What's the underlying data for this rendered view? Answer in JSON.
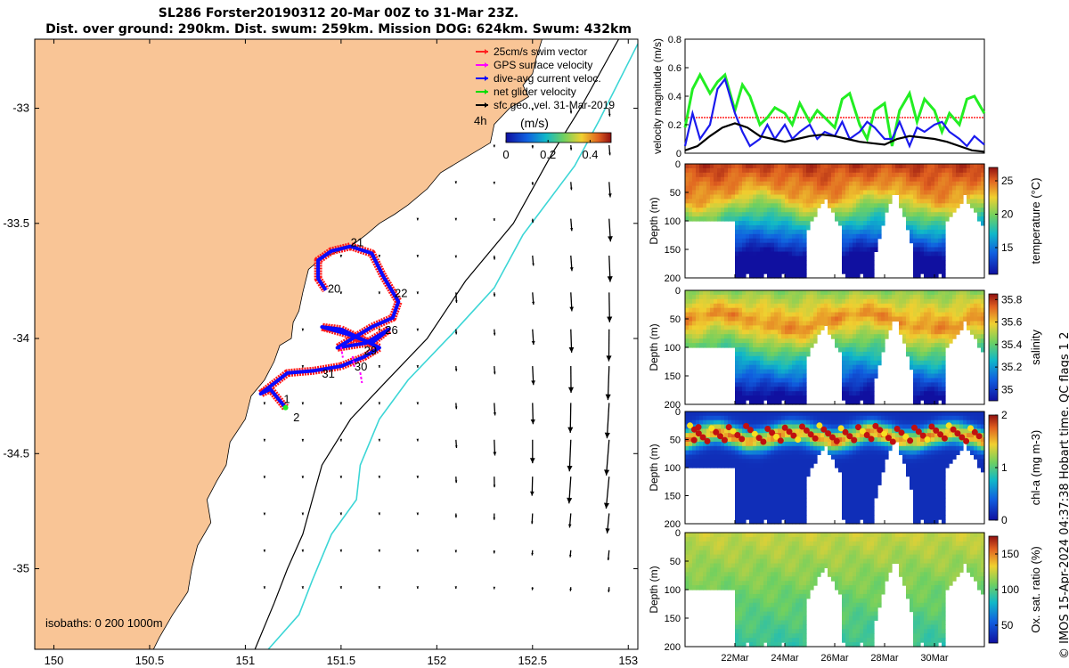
{
  "title": {
    "line1": "SL286 Forster20190312 20-Mar 00Z to 31-Mar 23Z.",
    "line2": "Dist. over ground: 290km. Dist. swum: 259km. Mission DOG: 624km. Swum: 432km"
  },
  "credit": "© IMOS 15-Apr-2024 04:37:38 Hobart time. QC flags 1  2",
  "colors": {
    "land": "#f9c596",
    "isobath200": "#000000",
    "isobath1000": "#3cd6d6",
    "glider_red": "#ff1a1a",
    "glider_blue": "#0a0aff",
    "net_velocity": "#22ee22",
    "gps": "#ff00ff",
    "swim_ref": "#ff2020"
  },
  "chart_data": [
    {
      "type": "scatter",
      "name": "map",
      "xlim": [
        149.9,
        153.05
      ],
      "ylim": [
        -35.35,
        -32.7
      ],
      "xticks": [
        150,
        150.5,
        151,
        151.5,
        152,
        152.5,
        153
      ],
      "yticks": [
        -33,
        -33.5,
        -34,
        -34.5,
        -35
      ],
      "legend": {
        "items": [
          {
            "label": "25cm/s swim vector",
            "color": "#ff2020"
          },
          {
            "label": "GPS surface velocity",
            "color": "#ff00ff"
          },
          {
            "label": "dive-avg current veloc.",
            "color": "#0000ff"
          },
          {
            "label": "net glider velocity",
            "color": "#00dd00"
          },
          {
            "label": "sfc geo. vel. 31-Mar-2019",
            "color": "#000000"
          }
        ],
        "marker_label": "4h",
        "colorbar_label": "(m/s)",
        "colorbar_ticks": [
          0,
          0.2,
          0.4
        ],
        "colorbar_range": [
          0,
          0.5
        ]
      },
      "isobaths_label": "isobaths: 0   200  1000m",
      "day_labels": [
        {
          "text": "1",
          "lon": 151.2,
          "lat": -34.28
        },
        {
          "text": "2",
          "lon": 151.25,
          "lat": -34.36
        },
        {
          "text": "20",
          "lon": 151.43,
          "lat": -33.8
        },
        {
          "text": "21",
          "lon": 151.55,
          "lat": -33.6
        },
        {
          "text": "22",
          "lon": 151.78,
          "lat": -33.82
        },
        {
          "text": "26",
          "lon": 151.73,
          "lat": -33.98
        },
        {
          "text": "29",
          "lon": 151.62,
          "lat": -34.07
        },
        {
          "text": "30",
          "lon": 151.57,
          "lat": -34.14
        },
        {
          "text": "31",
          "lon": 151.4,
          "lat": -34.17
        }
      ],
      "track": [
        [
          151.21,
          -34.3
        ],
        [
          151.13,
          -34.22
        ],
        [
          151.08,
          -34.24
        ],
        [
          151.22,
          -34.15
        ],
        [
          151.36,
          -34.14
        ],
        [
          151.5,
          -34.12
        ],
        [
          151.62,
          -34.08
        ],
        [
          151.7,
          -34.04
        ],
        [
          151.6,
          -34.0
        ],
        [
          151.5,
          -33.96
        ],
        [
          151.4,
          -33.95
        ],
        [
          151.53,
          -33.98
        ],
        [
          151.66,
          -34.02
        ],
        [
          151.75,
          -33.96
        ],
        [
          151.63,
          -34.02
        ],
        [
          151.48,
          -34.04
        ],
        [
          151.56,
          -34.0
        ],
        [
          151.66,
          -33.95
        ],
        [
          151.77,
          -33.91
        ],
        [
          151.8,
          -33.84
        ],
        [
          151.72,
          -33.73
        ],
        [
          151.66,
          -33.63
        ],
        [
          151.55,
          -33.6
        ],
        [
          151.45,
          -33.62
        ],
        [
          151.38,
          -33.66
        ],
        [
          151.38,
          -33.74
        ],
        [
          151.42,
          -33.79
        ]
      ],
      "currents_grid": {
        "lon0": 151.1,
        "dlon": 0.2,
        "lat0": -33.0,
        "dlat": 0.16,
        "u": [
          [
            0,
            0,
            0,
            0,
            0,
            0,
            0.02,
            0.02,
            0.05,
            0.08
          ],
          [
            0,
            0,
            0,
            0,
            0,
            0,
            0.02,
            0.03,
            0.05,
            0.1
          ],
          [
            0,
            0,
            0,
            0,
            0,
            0,
            0.02,
            0.03,
            0.08,
            0.15
          ],
          [
            0,
            0,
            0,
            0,
            0,
            0,
            0.02,
            0.04,
            0.12,
            0.22
          ],
          [
            0,
            0,
            0,
            0,
            0,
            0.02,
            0.04,
            0.1,
            0.15,
            0.25
          ],
          [
            0,
            0,
            0,
            0,
            0,
            0.1,
            0.04,
            0.12,
            0.18,
            0.28
          ],
          [
            0,
            0,
            0,
            0,
            0,
            0.05,
            0.06,
            0.15,
            0.22,
            0.3
          ],
          [
            0,
            0,
            0,
            0,
            0,
            0.05,
            0.08,
            0.18,
            0.25,
            0.32
          ],
          [
            0,
            0,
            0,
            0,
            0,
            0.06,
            0.12,
            0.2,
            0.28,
            0.34
          ],
          [
            0,
            0,
            0,
            0,
            0,
            0.08,
            0.15,
            0.22,
            0.3,
            0.35
          ],
          [
            0,
            0,
            0,
            0,
            0,
            0.06,
            0.1,
            0.18,
            0.26,
            0.32
          ],
          [
            0,
            0,
            0,
            0,
            0,
            0.04,
            0.06,
            0.1,
            0.14,
            0.2
          ],
          [
            0,
            0,
            0,
            0,
            0,
            0.02,
            0.03,
            0.05,
            0.07,
            0.1
          ],
          [
            0,
            0,
            0,
            0,
            0,
            0.01,
            0.02,
            0.03,
            0.04,
            0.05
          ]
        ]
      }
    },
    {
      "type": "line",
      "name": "velocity",
      "ylabel": "velocity magnitude (m/s)",
      "ylim": [
        0,
        0.8
      ],
      "yticks": [
        0,
        0.2,
        0.4,
        0.6,
        0.8
      ],
      "xlim": [
        20,
        32
      ],
      "reference": {
        "value": 0.25,
        "color": "#ff2020"
      },
      "series": [
        {
          "name": "net glider velocity",
          "color": "#22ee22",
          "x": [
            20,
            20.3,
            20.6,
            21,
            21.3,
            21.6,
            22,
            22.3,
            22.6,
            23,
            23.3,
            23.6,
            24,
            24.3,
            24.6,
            25,
            25.3,
            25.6,
            26,
            26.3,
            26.6,
            27,
            27.3,
            27.6,
            28,
            28.3,
            28.6,
            29,
            29.3,
            29.6,
            30,
            30.3,
            30.6,
            31,
            31.3,
            31.6,
            32
          ],
          "y": [
            0.18,
            0.45,
            0.55,
            0.42,
            0.5,
            0.55,
            0.3,
            0.48,
            0.4,
            0.2,
            0.25,
            0.32,
            0.28,
            0.2,
            0.35,
            0.22,
            0.3,
            0.25,
            0.18,
            0.38,
            0.42,
            0.2,
            0.1,
            0.3,
            0.35,
            0.05,
            0.3,
            0.42,
            0.22,
            0.38,
            0.3,
            0.15,
            0.28,
            0.2,
            0.38,
            0.4,
            0.28
          ]
        },
        {
          "name": "dive-avg current veloc.",
          "color": "#1a1aee",
          "x": [
            20,
            20.3,
            20.6,
            21,
            21.3,
            21.6,
            22,
            22.3,
            22.6,
            23,
            23.3,
            23.6,
            24,
            24.3,
            24.6,
            25,
            25.3,
            25.6,
            26,
            26.3,
            26.6,
            27,
            27.3,
            27.6,
            28,
            28.3,
            28.6,
            29,
            29.3,
            29.6,
            30,
            30.3,
            30.6,
            31,
            31.3,
            31.6,
            32
          ],
          "y": [
            0.05,
            0.28,
            0.1,
            0.2,
            0.45,
            0.52,
            0.28,
            0.15,
            0.05,
            0.1,
            0.2,
            0.1,
            0.2,
            0.1,
            0.15,
            0.2,
            0.1,
            0.15,
            0.12,
            0.22,
            0.1,
            0.15,
            0.22,
            0.18,
            0.1,
            0.1,
            0.22,
            0.05,
            0.18,
            0.15,
            0.2,
            0.22,
            0.15,
            0.1,
            0.05,
            0.12,
            0.06
          ]
        },
        {
          "name": "sfc geo. vel.",
          "color": "#000000",
          "x": [
            20,
            20.5,
            21,
            21.5,
            22,
            22.5,
            23,
            23.5,
            24,
            24.5,
            25,
            25.5,
            26,
            26.5,
            27,
            27.5,
            28,
            28.5,
            29,
            29.5,
            30,
            30.5,
            31,
            31.5,
            32
          ],
          "y": [
            0.02,
            0.05,
            0.12,
            0.18,
            0.21,
            0.18,
            0.12,
            0.1,
            0.08,
            0.1,
            0.12,
            0.13,
            0.12,
            0.1,
            0.08,
            0.07,
            0.06,
            0.1,
            0.12,
            0.11,
            0.1,
            0.08,
            0.05,
            0.02,
            0.01
          ]
        }
      ]
    },
    {
      "type": "heatmap",
      "name": "temperature",
      "ylabel": "Depth (m)",
      "clabel": "temperature (°C)",
      "clim": [
        11,
        27
      ],
      "cticks": [
        15,
        20,
        25
      ],
      "depth_range": [
        0,
        200
      ],
      "depth_ticks": [
        0,
        50,
        100,
        150,
        200
      ],
      "colormap": "parula",
      "surface": 26,
      "bottom": 11,
      "mid_depth": 55,
      "xlim": [
        20,
        32
      ],
      "xticks": [
        "22Mar",
        "24Mar",
        "26Mar",
        "28Mar",
        "30Mar"
      ],
      "xtick_days": [
        22,
        24,
        26,
        28,
        30
      ]
    },
    {
      "type": "heatmap",
      "name": "salinity",
      "ylabel": "Depth (m)",
      "clabel": "salinity",
      "clim": [
        34.9,
        35.85
      ],
      "cticks": [
        35,
        35.2,
        35.4,
        35.6,
        35.8
      ],
      "depth_range": [
        0,
        200
      ],
      "depth_ticks": [
        0,
        50,
        100,
        150,
        200
      ],
      "colormap": "parula",
      "surface": 35.45,
      "core": 35.68,
      "bottom": 35.0,
      "xlim": [
        20,
        32
      ],
      "xticks": [
        "22Mar",
        "24Mar",
        "26Mar",
        "28Mar",
        "30Mar"
      ],
      "xtick_days": [
        22,
        24,
        26,
        28,
        30
      ]
    },
    {
      "type": "heatmap",
      "name": "chlorophyll",
      "ylabel": "Depth (m)",
      "clabel": "chl-a (mg m-3)",
      "clim": [
        0,
        2
      ],
      "cticks": [
        0,
        1,
        2
      ],
      "depth_range": [
        0,
        200
      ],
      "depth_ticks": [
        0,
        50,
        100,
        150,
        200
      ],
      "colormap": "parula",
      "max_depth": 45,
      "max_value": 1.4,
      "xlim": [
        20,
        32
      ],
      "xticks": [
        "22Mar",
        "24Mar",
        "26Mar",
        "28Mar",
        "30Mar"
      ],
      "xtick_days": [
        22,
        24,
        26,
        28,
        30
      ]
    },
    {
      "type": "heatmap",
      "name": "oxygen",
      "ylabel": "Depth (m)",
      "clabel": "Ox. sat. ratio (%)",
      "clim": [
        25,
        175
      ],
      "cticks": [
        50,
        100,
        150
      ],
      "depth_range": [
        0,
        200
      ],
      "depth_ticks": [
        0,
        50,
        100,
        150,
        200
      ],
      "colormap": "parula",
      "surface": 125,
      "bottom": 92,
      "xlim": [
        20,
        32
      ],
      "xticks": [
        "22Mar",
        "24Mar",
        "26Mar",
        "28Mar",
        "30Mar"
      ],
      "xtick_days": [
        22,
        24,
        26,
        28,
        30
      ]
    }
  ]
}
